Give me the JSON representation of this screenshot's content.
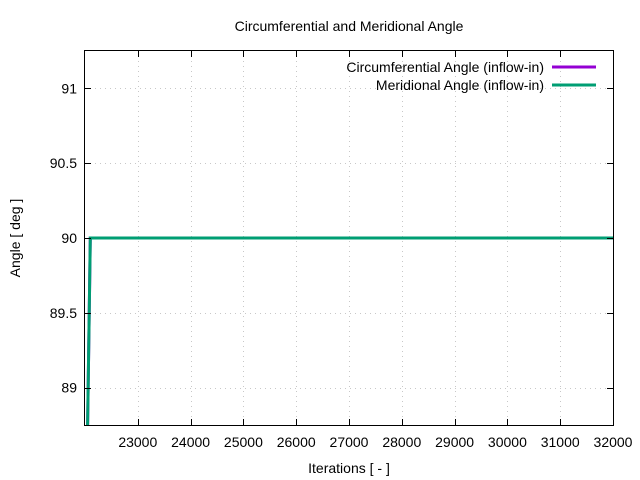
{
  "chart_data": {
    "type": "line",
    "title": "Circumferential and Meridional Angle",
    "xlabel": "Iterations [ - ]",
    "ylabel": "Angle [ deg ]",
    "xlim": [
      22000,
      32000
    ],
    "ylim": [
      88.75,
      91.25
    ],
    "x_ticks": [
      23000,
      24000,
      25000,
      26000,
      27000,
      28000,
      29000,
      30000,
      31000,
      32000
    ],
    "y_ticks": [
      89,
      89.5,
      90,
      90.5,
      91
    ],
    "x_tick_labels": [
      "23000",
      "24000",
      "25000",
      "26000",
      "27000",
      "28000",
      "29000",
      "30000",
      "31000",
      "32000"
    ],
    "y_tick_labels": [
      "89",
      "89.5",
      "90",
      "90.5",
      "91"
    ],
    "grid": true,
    "legend_position": "top-right",
    "series": [
      {
        "name": "Circumferential Angle (inflow-in)",
        "color": "#9400d3",
        "points": [
          [
            22050,
            88.75
          ],
          [
            22100,
            90
          ],
          [
            32000,
            90
          ]
        ]
      },
      {
        "name": "Meridional Angle (inflow-in)",
        "color": "#009e73",
        "points": [
          [
            22050,
            88.75
          ],
          [
            22100,
            90
          ],
          [
            32000,
            90
          ]
        ]
      }
    ]
  }
}
